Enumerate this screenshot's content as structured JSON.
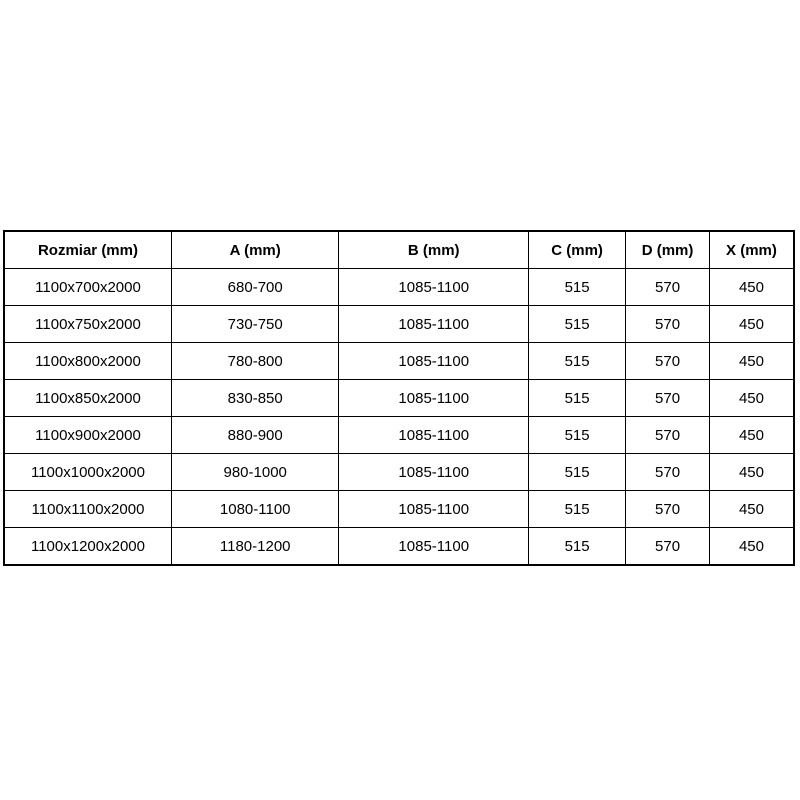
{
  "table": {
    "columns": [
      "Rozmiar (mm)",
      "A (mm)",
      "B (mm)",
      "C (mm)",
      "D (mm)",
      "X (mm)"
    ],
    "rows": [
      [
        "1100x700x2000",
        "680-700",
        "1085-1100",
        "515",
        "570",
        "450"
      ],
      [
        "1100x750x2000",
        "730-750",
        "1085-1100",
        "515",
        "570",
        "450"
      ],
      [
        "1100x800x2000",
        "780-800",
        "1085-1100",
        "515",
        "570",
        "450"
      ],
      [
        "1100x850x2000",
        "830-850",
        "1085-1100",
        "515",
        "570",
        "450"
      ],
      [
        "1100x900x2000",
        "880-900",
        "1085-1100",
        "515",
        "570",
        "450"
      ],
      [
        "1100x1000x2000",
        "980-1000",
        "1085-1100",
        "515",
        "570",
        "450"
      ],
      [
        "1100x1100x2000",
        "1080-1100",
        "1085-1100",
        "515",
        "570",
        "450"
      ],
      [
        "1100x1200x2000",
        "1180-1200",
        "1085-1100",
        "515",
        "570",
        "450"
      ]
    ]
  },
  "colors": {
    "border": "#000000",
    "text": "#000000",
    "background": "#ffffff"
  }
}
